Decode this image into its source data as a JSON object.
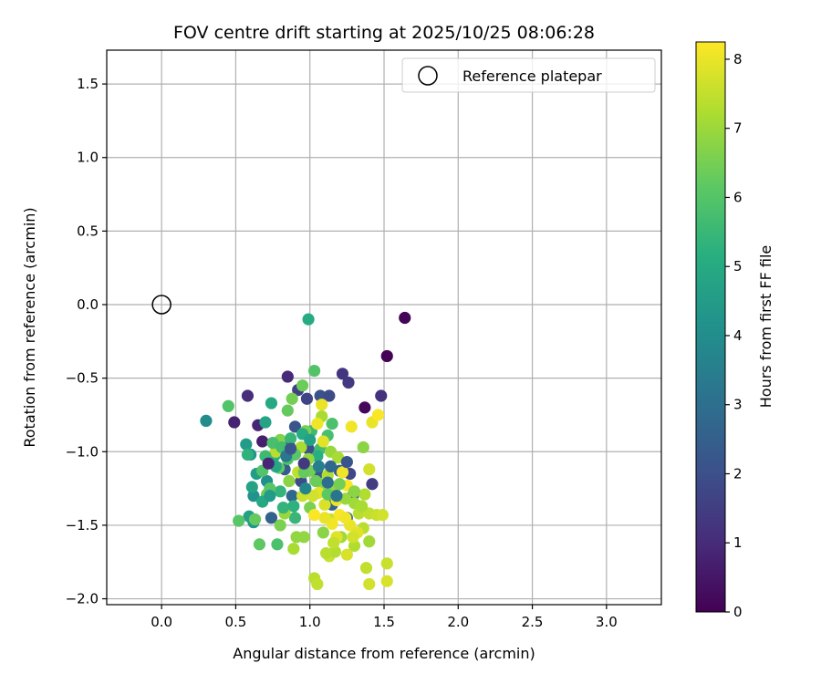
{
  "chart_data": {
    "type": "scatter",
    "title": "FOV centre drift starting at 2025/10/25 08:06:28",
    "xlabel": "Angular distance from reference (arcmin)",
    "ylabel": "Rotation from reference (arcmin)",
    "xlim": [
      -0.37,
      3.37
    ],
    "ylim": [
      -2.04,
      1.73
    ],
    "xticks": [
      0.0,
      0.5,
      1.0,
      1.5,
      2.0,
      2.5,
      3.0
    ],
    "xtick_labels": [
      "0.0",
      "0.5",
      "1.0",
      "1.5",
      "2.0",
      "2.5",
      "3.0"
    ],
    "yticks": [
      1.5,
      1.0,
      0.5,
      0.0,
      -0.5,
      -1.0,
      -1.5,
      -2.0
    ],
    "ytick_labels": [
      "1.5",
      "1.0",
      "0.5",
      "0.0",
      "−0.5",
      "−1.0",
      "−1.5",
      "−2.0"
    ],
    "grid": true,
    "legend": {
      "placement": "top-right",
      "entries": [
        "Reference platepar"
      ]
    },
    "reference_point": {
      "x": 0.0,
      "y": 0.0,
      "label": "Reference platepar"
    },
    "colorbar": {
      "label": "Hours from first FF file",
      "min": 0,
      "max": 8.25,
      "ticks": [
        0,
        1,
        2,
        3,
        4,
        5,
        6,
        7,
        8
      ],
      "tick_labels": [
        "0",
        "1",
        "2",
        "3",
        "4",
        "5",
        "6",
        "7",
        "8"
      ],
      "colormap": "viridis"
    },
    "points": [
      [
        1.64,
        -0.09,
        0.1
      ],
      [
        1.52,
        -0.35,
        0.05
      ],
      [
        1.37,
        -0.7,
        0.2
      ],
      [
        1.48,
        -0.62,
        1.2
      ],
      [
        1.42,
        -1.22,
        1.5
      ],
      [
        0.85,
        -0.49,
        1.0
      ],
      [
        0.58,
        -0.62,
        1.1
      ],
      [
        0.49,
        -0.8,
        0.8
      ],
      [
        0.65,
        -0.82,
        0.9
      ],
      [
        0.68,
        -0.93,
        0.7
      ],
      [
        0.86,
        -0.96,
        0.6
      ],
      [
        0.92,
        -0.58,
        1.6
      ],
      [
        0.98,
        -0.64,
        1.7
      ],
      [
        1.07,
        -0.62,
        2.1
      ],
      [
        1.13,
        -0.62,
        1.9
      ],
      [
        1.22,
        -0.47,
        1.3
      ],
      [
        1.26,
        -0.53,
        1.4
      ],
      [
        0.9,
        -0.83,
        2.2
      ],
      [
        0.99,
        -0.98,
        2.0
      ],
      [
        1.05,
        -1.15,
        2.3
      ],
      [
        1.2,
        -1.13,
        2.5
      ],
      [
        1.27,
        -1.15,
        1.8
      ],
      [
        1.15,
        -1.36,
        2.6
      ],
      [
        1.29,
        -1.3,
        2.7
      ],
      [
        1.25,
        -1.45,
        2.9
      ],
      [
        0.83,
        -1.12,
        2.4
      ],
      [
        0.88,
        -1.3,
        2.8
      ],
      [
        0.94,
        -1.2,
        1.9
      ],
      [
        0.74,
        -1.45,
        2.6
      ],
      [
        0.62,
        -1.3,
        4.2
      ],
      [
        0.3,
        -0.79,
        4.0
      ],
      [
        0.57,
        -0.95,
        4.5
      ],
      [
        0.6,
        -1.02,
        4.3
      ],
      [
        0.64,
        -1.15,
        4.6
      ],
      [
        0.62,
        -1.48,
        4.4
      ],
      [
        0.59,
        -1.44,
        4.7
      ],
      [
        0.71,
        -1.2,
        4.1
      ],
      [
        0.7,
        -0.8,
        4.8
      ],
      [
        0.74,
        -0.67,
        5.0
      ],
      [
        0.76,
        -1.03,
        5.2
      ],
      [
        0.8,
        -1.27,
        5.4
      ],
      [
        0.89,
        -1.37,
        5.3
      ],
      [
        0.9,
        -1.45,
        5.5
      ],
      [
        0.99,
        -0.1,
        5.1
      ],
      [
        1.01,
        -0.86,
        5.6
      ],
      [
        1.07,
        -0.98,
        5.7
      ],
      [
        1.12,
        -0.89,
        5.8
      ],
      [
        1.15,
        -0.81,
        5.9
      ],
      [
        1.05,
        -1.03,
        5.2
      ],
      [
        0.45,
        -0.69,
        6.0
      ],
      [
        0.52,
        -1.47,
        6.1
      ],
      [
        0.66,
        -1.63,
        6.2
      ],
      [
        0.78,
        -1.63,
        5.9
      ],
      [
        0.63,
        -1.46,
        6.3
      ],
      [
        0.71,
        -1.29,
        6.4
      ],
      [
        0.79,
        -1.11,
        6.2
      ],
      [
        0.85,
        -0.72,
        6.3
      ],
      [
        0.88,
        -0.64,
        6.5
      ],
      [
        0.95,
        -0.55,
        6.4
      ],
      [
        1.03,
        -0.45,
        6.0
      ],
      [
        0.97,
        -0.86,
        6.6
      ],
      [
        1.0,
        -1.13,
        6.5
      ],
      [
        1.08,
        -1.22,
        6.7
      ],
      [
        1.0,
        -1.38,
        6.6
      ],
      [
        1.09,
        -1.55,
        6.8
      ],
      [
        0.96,
        -1.58,
        6.9
      ],
      [
        0.89,
        -1.66,
        7.2
      ],
      [
        1.03,
        -1.86,
        7.4
      ],
      [
        1.05,
        -1.9,
        7.5
      ],
      [
        1.13,
        -1.71,
        7.6
      ],
      [
        1.17,
        -1.68,
        7.3
      ],
      [
        1.21,
        -1.58,
        7.1
      ],
      [
        1.36,
        -0.97,
        6.8
      ],
      [
        1.14,
        -1.0,
        7.0
      ],
      [
        1.19,
        -1.04,
        7.2
      ],
      [
        1.3,
        -1.35,
        7.1
      ],
      [
        1.33,
        -1.42,
        7.4
      ],
      [
        1.37,
        -1.29,
        7.3
      ],
      [
        1.4,
        -1.42,
        7.5
      ],
      [
        1.45,
        -1.43,
        7.6
      ],
      [
        1.49,
        -1.43,
        7.7
      ],
      [
        1.52,
        -1.76,
        7.6
      ],
      [
        1.52,
        -1.88,
        7.8
      ],
      [
        1.4,
        -1.9,
        7.7
      ],
      [
        1.38,
        -1.79,
        7.5
      ],
      [
        1.36,
        -1.52,
        7.4
      ],
      [
        1.3,
        -1.64,
        7.3
      ],
      [
        1.25,
        -1.7,
        7.8
      ],
      [
        1.18,
        -1.58,
        7.9
      ],
      [
        1.14,
        -1.46,
        7.6
      ],
      [
        1.1,
        -1.36,
        7.8
      ],
      [
        1.06,
        -1.28,
        7.9
      ],
      [
        1.08,
        -0.68,
        8.0
      ],
      [
        1.08,
        -0.76,
        7.2
      ],
      [
        1.05,
        -0.81,
        8.1
      ],
      [
        1.09,
        -0.93,
        7.9
      ],
      [
        1.28,
        -0.83,
        8.1
      ],
      [
        1.42,
        -0.8,
        8.0
      ],
      [
        1.46,
        -0.75,
        8.2
      ],
      [
        1.4,
        -1.12,
        7.7
      ],
      [
        1.22,
        -1.14,
        8.1
      ],
      [
        1.25,
        -1.23,
        8.2
      ],
      [
        1.18,
        -1.33,
        8.0
      ],
      [
        1.15,
        -1.49,
        8.1
      ],
      [
        1.2,
        -1.43,
        8.2
      ],
      [
        1.27,
        -1.5,
        8.0
      ],
      [
        1.32,
        -1.55,
        7.9
      ],
      [
        1.24,
        -1.45,
        8.1
      ],
      [
        1.1,
        -1.45,
        8.0
      ],
      [
        1.03,
        -1.43,
        8.2
      ],
      [
        0.83,
        -1.42,
        7.0
      ],
      [
        0.8,
        -0.92,
        6.7
      ],
      [
        0.94,
        -0.97,
        7.2
      ],
      [
        0.99,
        -1.05,
        6.9
      ],
      [
        0.86,
        -1.2,
        6.8
      ],
      [
        0.77,
        -1.0,
        7.4
      ],
      [
        0.92,
        -1.14,
        7.5
      ],
      [
        0.95,
        -1.3,
        7.6
      ],
      [
        1.02,
        -1.3,
        7.7
      ],
      [
        1.12,
        -1.16,
        7.3
      ],
      [
        1.17,
        -1.24,
        6.9
      ],
      [
        1.24,
        -1.32,
        7.0
      ],
      [
        1.35,
        -1.37,
        7.2
      ],
      [
        1.4,
        -1.61,
        7.1
      ],
      [
        1.29,
        -1.58,
        7.7
      ],
      [
        1.16,
        -1.62,
        7.5
      ],
      [
        1.11,
        -1.69,
        7.4
      ],
      [
        0.91,
        -1.58,
        6.9
      ],
      [
        0.8,
        -1.5,
        6.6
      ],
      [
        0.73,
        -1.25,
        6.1
      ],
      [
        0.68,
        -1.13,
        6.0
      ],
      [
        0.7,
        -1.03,
        5.6
      ],
      [
        0.75,
        -0.94,
        5.8
      ],
      [
        0.81,
        -0.97,
        5.7
      ],
      [
        0.85,
        -1.05,
        5.9
      ],
      [
        0.9,
        -1.02,
        6.1
      ],
      [
        0.96,
        -1.14,
        6.3
      ],
      [
        1.04,
        -1.2,
        6.4
      ],
      [
        1.12,
        -1.29,
        6.2
      ],
      [
        1.2,
        -1.22,
        6.5
      ],
      [
        1.3,
        -1.27,
        6.8
      ],
      [
        0.82,
        -1.38,
        5.4
      ],
      [
        0.68,
        -1.34,
        5.0
      ],
      [
        0.61,
        -1.24,
        4.8
      ],
      [
        0.58,
        -1.02,
        5.3
      ],
      [
        0.73,
        -1.3,
        4.5
      ],
      [
        0.77,
        -1.1,
        4.9
      ],
      [
        0.87,
        -0.91,
        5.5
      ],
      [
        0.95,
        -0.88,
        5.1
      ],
      [
        1.0,
        -0.92,
        4.7
      ],
      [
        1.06,
        -1.1,
        3.5
      ],
      [
        1.12,
        -1.21,
        3.0
      ],
      [
        1.18,
        -1.3,
        3.2
      ],
      [
        0.97,
        -1.25,
        3.8
      ],
      [
        0.84,
        -1.03,
        3.3
      ],
      [
        1.25,
        -1.07,
        2.2
      ],
      [
        1.14,
        -1.1,
        2.8
      ],
      [
        0.96,
        -1.08,
        1.4
      ],
      [
        0.72,
        -1.08,
        0.9
      ],
      [
        0.87,
        -0.98,
        2.2
      ]
    ]
  }
}
